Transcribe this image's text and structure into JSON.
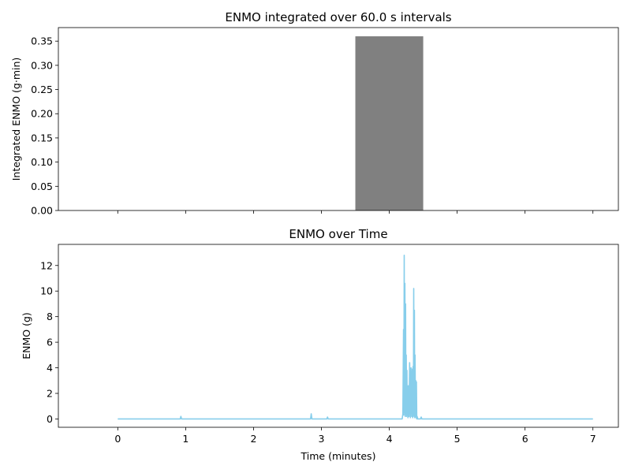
{
  "chart_data": [
    {
      "type": "bar",
      "title": "ENMO integrated over 60.0 s intervals",
      "xlabel": "",
      "ylabel": "Integrated ENMO (g·min)",
      "xlim": [
        -0.875,
        7.375
      ],
      "ylim": [
        0,
        0.378
      ],
      "yticks": [
        0.0,
        0.05,
        0.1,
        0.15,
        0.2,
        0.25,
        0.3,
        0.35
      ],
      "ytick_labels": [
        "0.00",
        "0.05",
        "0.10",
        "0.15",
        "0.20",
        "0.25",
        "0.30",
        "0.35"
      ],
      "xticks": [
        0,
        1,
        2,
        3,
        4,
        5,
        6,
        7
      ],
      "bars": [
        {
          "x_start": 0,
          "x_end": 1,
          "value": 0.0
        },
        {
          "x_start": 1,
          "x_end": 2,
          "value": 0.0
        },
        {
          "x_start": 2,
          "x_end": 3,
          "value": 0.0
        },
        {
          "x_start": 3,
          "x_end": 3.5,
          "value": 0.0
        },
        {
          "x_start": 3.5,
          "x_end": 4.5,
          "value": 0.36
        },
        {
          "x_start": 4.5,
          "x_end": 7,
          "value": 0.0
        }
      ],
      "bar_color": "#808080",
      "grid": false
    },
    {
      "type": "line",
      "title": "ENMO over Time",
      "xlabel": "Time (minutes)",
      "ylabel": "ENMO (g)",
      "xlim": [
        -0.875,
        7.375
      ],
      "ylim": [
        -0.65,
        13.65
      ],
      "xticks": [
        0,
        1,
        2,
        3,
        4,
        5,
        6,
        7
      ],
      "xtick_labels": [
        "0",
        "1",
        "2",
        "3",
        "4",
        "5",
        "6",
        "7"
      ],
      "yticks": [
        0,
        2,
        4,
        6,
        8,
        10,
        12
      ],
      "ytick_labels": [
        "0",
        "2",
        "4",
        "6",
        "8",
        "10",
        "12"
      ],
      "line_color": "#87CEEB",
      "grid": false,
      "series": [
        {
          "x": [
            0,
            0.92,
            0.93,
            0.94,
            2.84,
            2.85,
            2.86,
            3.08,
            3.09,
            3.1,
            4.19,
            4.2,
            4.21,
            4.215,
            4.22,
            4.225,
            4.23,
            4.235,
            4.24,
            4.245,
            4.25,
            4.255,
            4.26,
            4.265,
            4.27,
            4.275,
            4.28,
            4.29,
            4.3,
            4.31,
            4.32,
            4.33,
            4.34,
            4.345,
            4.35,
            4.355,
            4.36,
            4.365,
            4.37,
            4.375,
            4.38,
            4.385,
            4.39,
            4.395,
            4.4,
            4.405,
            4.41,
            4.42,
            4.43,
            4.46,
            4.47,
            4.48,
            7
          ],
          "y": [
            0,
            0.0,
            0.2,
            0.0,
            0.0,
            0.4,
            0.0,
            0.0,
            0.15,
            0.0,
            0.0,
            0.4,
            7.0,
            0.3,
            12.8,
            0.5,
            10.6,
            0.2,
            9.0,
            0.4,
            5.0,
            0.2,
            3.8,
            0.3,
            1.5,
            0.1,
            2.6,
            0.2,
            4.4,
            0.1,
            4.0,
            0.2,
            3.9,
            0.1,
            4.1,
            0.3,
            10.2,
            0.2,
            8.5,
            0.1,
            5.0,
            0.2,
            3.0,
            0.1,
            2.9,
            0.0,
            0.2,
            0.0,
            0.0,
            0.0,
            0.15,
            0.0,
            0.0
          ]
        }
      ]
    }
  ]
}
